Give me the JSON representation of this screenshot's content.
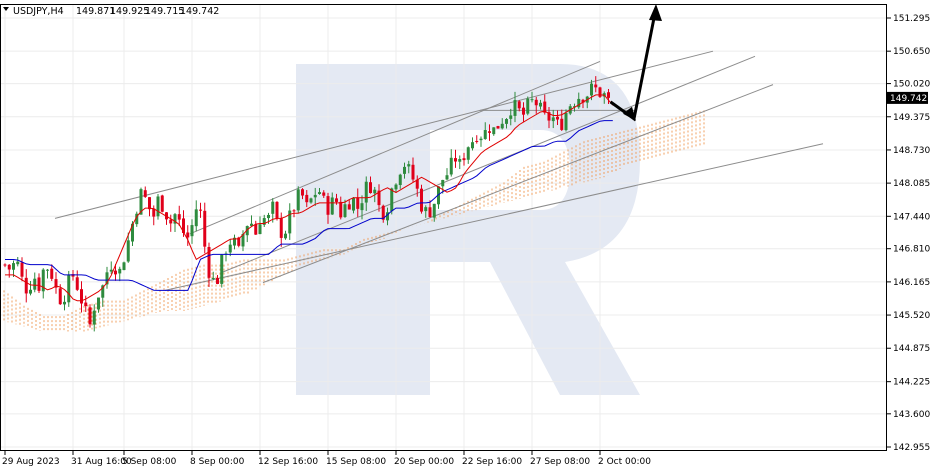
{
  "header": {
    "symbol": "USDJPY,H4",
    "ohlc": [
      "149.871",
      "149.925",
      "149.715",
      "149.742"
    ]
  },
  "current_price": {
    "value": 149.742,
    "label": "149.742"
  },
  "colors": {
    "bull": "#2e8b3e",
    "bear": "#e0001a",
    "tenkan": "#e00000",
    "kijun": "#0000cc",
    "cloud": "#f0a060",
    "trendline": "#8c8c8c",
    "arrow": "#000000",
    "grid": "#ececec",
    "watermark": "#e4e9f3"
  },
  "chart_data": {
    "type": "candlestick",
    "ylim": [
      142.955,
      151.295
    ],
    "y_ticks": [
      "151.295",
      "150.650",
      "150.020",
      "149.375",
      "148.730",
      "148.085",
      "147.440",
      "146.810",
      "146.165",
      "145.520",
      "144.875",
      "144.225",
      "143.600",
      "142.955"
    ],
    "x_ticks": [
      {
        "label": "29 Aug 2023",
        "index": 0
      },
      {
        "label": "31 Aug 16:00",
        "index": 16
      },
      {
        "label": "5 Sep 08:00",
        "index": 28
      },
      {
        "label": "8 Sep 00:00",
        "index": 44
      },
      {
        "label": "12 Sep 16:00",
        "index": 60
      },
      {
        "label": "15 Sep 08:00",
        "index": 76
      },
      {
        "label": "20 Sep 00:00",
        "index": 92
      },
      {
        "label": "22 Sep 16:00",
        "index": 108
      },
      {
        "label": "27 Sep 08:00",
        "index": 124
      },
      {
        "label": "2 Oct 00:00",
        "index": 140
      }
    ],
    "close_path": [
      146.5,
      146.4,
      146.6,
      146.2,
      146.0,
      146.3,
      146.1,
      146.5,
      146.4,
      146.0,
      145.8,
      146.1,
      146.3,
      146.0,
      145.6,
      145.3,
      145.9,
      146.0,
      146.4,
      146.6,
      146.3,
      146.7,
      147.1,
      147.6,
      147.9,
      147.7,
      147.4,
      147.8,
      147.6,
      147.3,
      147.5,
      147.2,
      147.0,
      147.3,
      147.8,
      146.9,
      146.3,
      146.1,
      146.5,
      146.9,
      147.0,
      146.7,
      147.2,
      147.4,
      147.1,
      147.5,
      147.3,
      147.6,
      147.2,
      147.1,
      147.4,
      147.7,
      147.9,
      147.6,
      147.8,
      148.0,
      147.7,
      147.6,
      147.8,
      147.5,
      147.7,
      147.8,
      147.6,
      147.9,
      148.1,
      147.9,
      147.5,
      147.6,
      148.0,
      148.3,
      148.5,
      148.3,
      148.1,
      147.7,
      147.5,
      147.6,
      147.9,
      148.2,
      148.3,
      148.6,
      148.4,
      148.8,
      148.9,
      149.1,
      149.0,
      149.2,
      149.1,
      149.3,
      149.4,
      149.6,
      149.5,
      149.4,
      149.6,
      149.7,
      149.5,
      149.3,
      149.4,
      149.2,
      149.3,
      149.6,
      149.7,
      149.8,
      149.8,
      149.9,
      149.9,
      149.8,
      149.742
    ],
    "tenkan_path": [
      146.3,
      146.3,
      146.2,
      146.1,
      146.1,
      146.0,
      146.1,
      146.0,
      145.8,
      145.8,
      145.9,
      146.0,
      146.2,
      146.6,
      147.0,
      147.4,
      147.6,
      147.6,
      147.5,
      147.4,
      147.3,
      147.0,
      146.6,
      146.7,
      146.8,
      146.9,
      147.0,
      147.0,
      147.2,
      147.3,
      147.3,
      147.4,
      147.4,
      147.5,
      147.5,
      147.6,
      147.7,
      147.7,
      147.7,
      147.7,
      147.8,
      147.8,
      147.8,
      147.9,
      148.0,
      147.9,
      148.0,
      148.1,
      148.2,
      148.1,
      148.0,
      147.9,
      148.0,
      148.3,
      148.5,
      148.7,
      148.8,
      148.9,
      149.0,
      149.2,
      149.3,
      149.4,
      149.5,
      149.4,
      149.4,
      149.5,
      149.6,
      149.7,
      149.8,
      149.8,
      149.6
    ],
    "kijun_path": [
      146.6,
      146.6,
      146.5,
      146.5,
      146.5,
      146.3,
      146.3,
      146.3,
      146.2,
      146.2,
      146.2,
      146.2,
      146.1,
      146.0,
      146.0,
      146.0,
      146.0,
      146.6,
      146.7,
      146.7,
      146.7,
      146.7,
      146.7,
      146.7,
      146.9,
      146.9,
      146.9,
      147.0,
      147.2,
      147.2,
      147.2,
      147.3,
      147.4,
      147.4,
      147.6,
      147.6,
      147.7,
      147.7,
      147.9,
      148.0,
      148.1,
      148.2,
      148.4,
      148.5,
      148.6,
      148.7,
      148.8,
      148.8,
      148.9,
      148.9,
      149.1,
      149.2,
      149.3,
      149.3
    ],
    "cloud_top": [
      146.0,
      145.7,
      145.5,
      145.5,
      145.7,
      145.8,
      145.8,
      146.0,
      146.2,
      146.4,
      146.5,
      146.5,
      146.6,
      146.6,
      146.6,
      146.7,
      146.8,
      146.8,
      147.0,
      147.1,
      147.2,
      147.3,
      147.5,
      147.7,
      147.9,
      148.1,
      148.4,
      148.5,
      148.7,
      148.9,
      149.0,
      149.1,
      149.2,
      149.3,
      149.4,
      149.5
    ],
    "cloud_bottom": [
      145.4,
      145.3,
      145.2,
      145.2,
      145.2,
      145.3,
      145.4,
      145.5,
      145.6,
      145.6,
      145.7,
      145.8,
      145.9,
      146.1,
      146.3,
      146.5,
      146.6,
      146.7,
      146.9,
      147.0,
      147.2,
      147.3,
      147.4,
      147.5,
      147.6,
      147.7,
      147.8,
      147.9,
      148.0,
      148.1,
      148.2,
      148.4,
      148.5,
      148.6,
      148.7,
      148.8
    ],
    "forecast": {
      "down_to": 149.375,
      "up_to": 151.295
    }
  }
}
